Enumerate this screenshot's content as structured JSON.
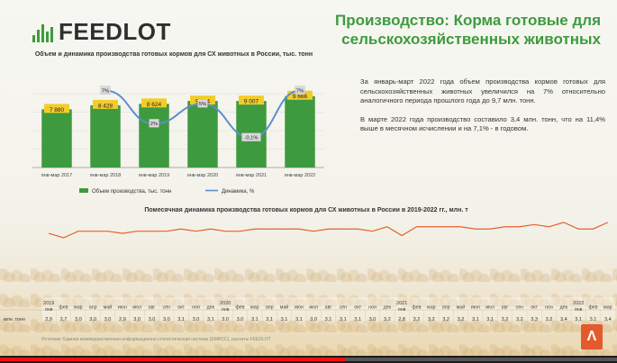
{
  "header": {
    "logo_text": "FEEDLOT",
    "title": "Производство: Корма готовые для сельскохозяйственных животных"
  },
  "colors": {
    "bar": "#3e9a3e",
    "line": "#5b8fcf",
    "label_bg": "#f3cc2c",
    "monthly_line": "#e8602c",
    "title": "#3e9a3e"
  },
  "text_block": {
    "p1": "За январь-март 2022 года объем производства кормов готовых для сельскохозяйственных животных увеличился на 7% относительно аналогичного периода прошлого года до 9,7 млн. тонн.",
    "p2": "В марте 2022 года производство составило 3,4 млн. тонн, что на 11,4% выше в месячном исчислении и на 7,1% - в годовом."
  },
  "monthly_title": "Помесячная динамика производства готовых кормов для СХ животных в России в 2019-2022 гг., млн. т",
  "source_text": "Источник: Единая межведомственная информационно-статистическая система (ЕМИСС), расчеты FEEDLOT",
  "video": {
    "progress": 0.56
  },
  "chart_data": [
    {
      "type": "bar",
      "title": "Объем и динамика производства готовых кормов для СХ животных в России, тыс. тонн",
      "categories": [
        "янв-мар 2017",
        "янв-мар 2018",
        "янв-мар 2019",
        "янв-мар 2020",
        "янв-мар 2021",
        "янв-мар 2022"
      ],
      "series": [
        {
          "name": "Объем производства, тыс. тонн",
          "values": [
            7880,
            8428,
            8624,
            9014,
            9007,
            9666
          ],
          "labels": [
            "7 880",
            "8 428",
            "8 624",
            "9 014",
            "9 007",
            "9 666"
          ]
        },
        {
          "name": "Динамика, %",
          "axis": "secondary",
          "values": [
            null,
            7,
            2,
            5,
            -0.1,
            7
          ],
          "labels": [
            "",
            "7%",
            "2%",
            "5%",
            "-0,1%",
            "7%"
          ]
        }
      ],
      "grid": true,
      "legend": "bottom"
    },
    {
      "type": "line",
      "title": "Помесячная динамика производства готовых кормов для СХ животных в России в 2019-2022 гг., млн. т",
      "row_label": "млн. тонн",
      "year_labels": [
        "2019",
        "2020",
        "2021",
        "2022"
      ],
      "x": [
        "янв",
        "фев",
        "мар",
        "апр",
        "май",
        "июн",
        "июл",
        "авг",
        "сен",
        "окт",
        "ноя",
        "дек",
        "янв",
        "фев",
        "мар",
        "апр",
        "май",
        "июн",
        "июл",
        "авг",
        "сен",
        "окт",
        "ноя",
        "дек",
        "янв",
        "фев",
        "мар",
        "апр",
        "май",
        "июн",
        "июл",
        "авг",
        "сен",
        "окт",
        "ноя",
        "дек",
        "янв",
        "фев",
        "мар"
      ],
      "y": [
        2.9,
        2.7,
        3.0,
        3.0,
        3.0,
        2.9,
        3.0,
        3.0,
        3.0,
        3.1,
        3.0,
        3.1,
        3.0,
        3.0,
        3.1,
        3.1,
        3.1,
        3.1,
        3.0,
        3.1,
        3.1,
        3.1,
        3.0,
        3.2,
        2.8,
        3.2,
        3.2,
        3.2,
        3.2,
        3.1,
        3.1,
        3.2,
        3.2,
        3.3,
        3.2,
        3.4,
        3.1,
        3.1,
        3.4
      ],
      "y_labels": [
        "2,9",
        "2,7",
        "3,0",
        "3,0",
        "3,0",
        "2,9",
        "3,0",
        "3,0",
        "3,0",
        "3,1",
        "3,0",
        "3,1",
        "3,0",
        "3,0",
        "3,1",
        "3,1",
        "3,1",
        "3,1",
        "3,0",
        "3,1",
        "3,1",
        "3,1",
        "3,0",
        "3,2",
        "2,8",
        "3,2",
        "3,2",
        "3,2",
        "3,2",
        "3,1",
        "3,1",
        "3,2",
        "3,2",
        "3,3",
        "3,2",
        "3,4",
        "3,1",
        "3,1",
        "3,4"
      ]
    }
  ]
}
